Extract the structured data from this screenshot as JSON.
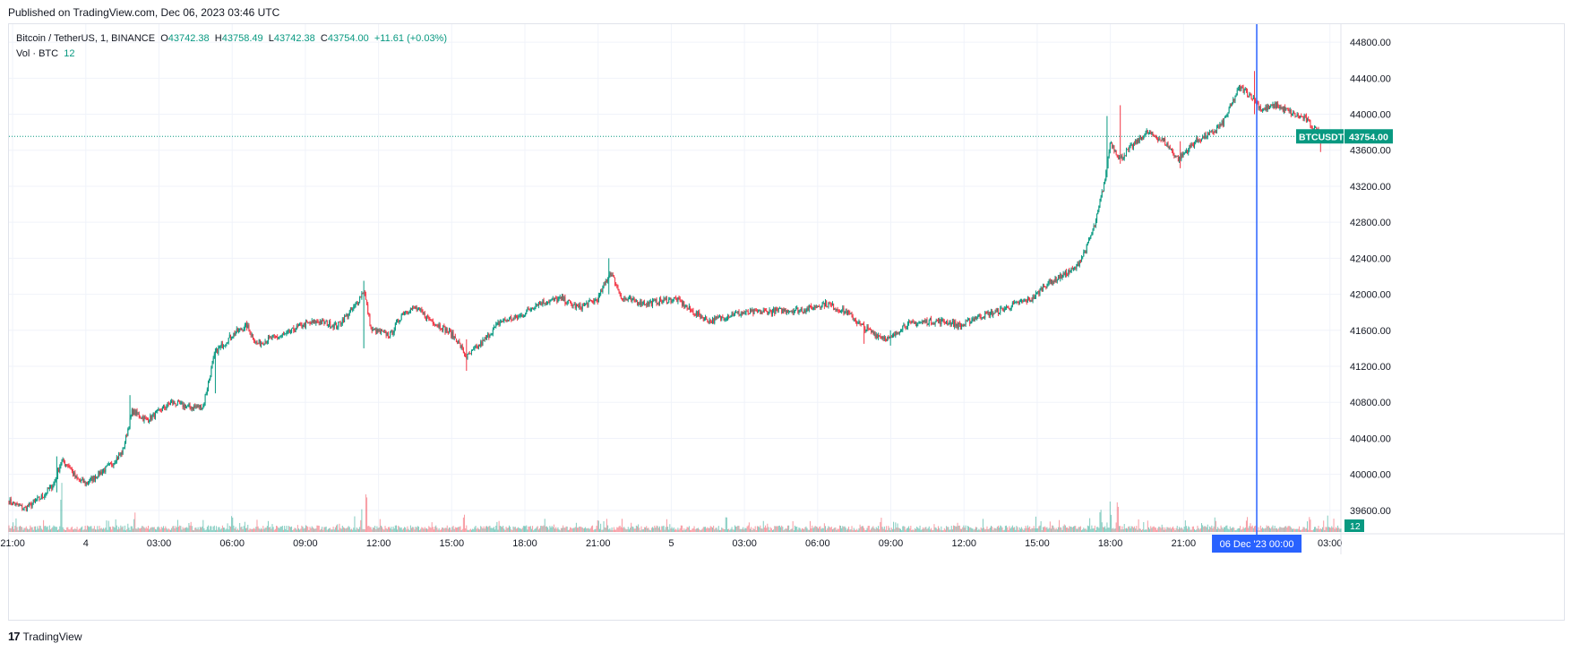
{
  "header": {
    "published": "Published on TradingView.com, Dec 06, 2023 03:46 UTC"
  },
  "legend": {
    "symbol": "Bitcoin / TetherUS, 1, BINANCE",
    "o_label": "O",
    "o": "43742.38",
    "h_label": "H",
    "h": "43758.49",
    "l_label": "L",
    "l": "43742.38",
    "c_label": "C",
    "c": "43754.00",
    "change": "+11.61 (+0.03%)",
    "vol_label": "Vol · BTC",
    "vol_value": "12"
  },
  "footer": {
    "brand": "TradingView",
    "logo": "17"
  },
  "colors": {
    "up": "#089981",
    "down": "#f23645",
    "cursor": "#2962ff",
    "grid": "#f0f3fa"
  },
  "chart_data": {
    "type": "candlestick",
    "symbol": "BTCUSDT",
    "interval": "1",
    "exchange": "BINANCE",
    "ylim": [
      39360,
      45000
    ],
    "y_ticks": [
      39600,
      40000,
      40400,
      40800,
      41200,
      41600,
      42000,
      42400,
      42800,
      43200,
      43600,
      44000,
      44400,
      44800
    ],
    "x_ticks": [
      {
        "label": "21:00",
        "t": 0
      },
      {
        "label": "4",
        "t": 3
      },
      {
        "label": "03:00",
        "t": 6
      },
      {
        "label": "06:00",
        "t": 9
      },
      {
        "label": "09:00",
        "t": 12
      },
      {
        "label": "12:00",
        "t": 15
      },
      {
        "label": "15:00",
        "t": 18
      },
      {
        "label": "18:00",
        "t": 21
      },
      {
        "label": "21:00",
        "t": 24
      },
      {
        "label": "5",
        "t": 27
      },
      {
        "label": "03:00",
        "t": 30
      },
      {
        "label": "06:00",
        "t": 33
      },
      {
        "label": "09:00",
        "t": 36
      },
      {
        "label": "12:00",
        "t": 39
      },
      {
        "label": "15:00",
        "t": 42
      },
      {
        "label": "18:00",
        "t": 45
      },
      {
        "label": "21:00",
        "t": 48
      },
      {
        "label": "03:00",
        "t": 54
      }
    ],
    "t_range": [
      -0.15,
      54.45
    ],
    "price_path": [
      [
        -0.15,
        39700
      ],
      [
        0.5,
        39620
      ],
      [
        1.2,
        39750
      ],
      [
        1.7,
        39900
      ],
      [
        2.0,
        40150
      ],
      [
        2.3,
        40100
      ],
      [
        2.6,
        39950
      ],
      [
        3.0,
        39900
      ],
      [
        3.5,
        40000
      ],
      [
        4.0,
        40100
      ],
      [
        4.5,
        40250
      ],
      [
        4.9,
        40700
      ],
      [
        5.5,
        40600
      ],
      [
        6.0,
        40700
      ],
      [
        6.5,
        40800
      ],
      [
        7.2,
        40750
      ],
      [
        7.8,
        40750
      ],
      [
        8.3,
        41350
      ],
      [
        9.0,
        41550
      ],
      [
        9.6,
        41650
      ],
      [
        10.0,
        41450
      ],
      [
        10.5,
        41500
      ],
      [
        11.2,
        41550
      ],
      [
        11.8,
        41650
      ],
      [
        12.5,
        41700
      ],
      [
        13.3,
        41650
      ],
      [
        14.0,
        41850
      ],
      [
        14.4,
        42050
      ],
      [
        14.7,
        41600
      ],
      [
        15.5,
        41550
      ],
      [
        16.0,
        41800
      ],
      [
        16.5,
        41850
      ],
      [
        17.2,
        41700
      ],
      [
        17.8,
        41600
      ],
      [
        18.2,
        41500
      ],
      [
        18.6,
        41300
      ],
      [
        19.2,
        41450
      ],
      [
        20.0,
        41700
      ],
      [
        20.8,
        41750
      ],
      [
        21.5,
        41900
      ],
      [
        22.5,
        41950
      ],
      [
        23.2,
        41850
      ],
      [
        24.0,
        41950
      ],
      [
        24.5,
        42250
      ],
      [
        25.0,
        41950
      ],
      [
        26.0,
        41900
      ],
      [
        27.2,
        41950
      ],
      [
        27.9,
        41800
      ],
      [
        28.6,
        41700
      ],
      [
        29.5,
        41780
      ],
      [
        30.5,
        41800
      ],
      [
        31.5,
        41820
      ],
      [
        32.5,
        41830
      ],
      [
        33.3,
        41900
      ],
      [
        34.2,
        41800
      ],
      [
        34.8,
        41650
      ],
      [
        35.4,
        41550
      ],
      [
        36.0,
        41500
      ],
      [
        36.5,
        41650
      ],
      [
        37.5,
        41700
      ],
      [
        38.2,
        41700
      ],
      [
        38.9,
        41650
      ],
      [
        39.5,
        41750
      ],
      [
        40.3,
        41800
      ],
      [
        41.2,
        41900
      ],
      [
        41.8,
        41950
      ],
      [
        42.3,
        42100
      ],
      [
        43.0,
        42200
      ],
      [
        43.6,
        42300
      ],
      [
        44.0,
        42500
      ],
      [
        44.4,
        42800
      ],
      [
        44.8,
        43300
      ],
      [
        45.0,
        43700
      ],
      [
        45.4,
        43500
      ],
      [
        45.9,
        43650
      ],
      [
        46.5,
        43800
      ],
      [
        47.2,
        43700
      ],
      [
        47.8,
        43500
      ],
      [
        48.5,
        43700
      ],
      [
        49.2,
        43800
      ],
      [
        49.6,
        43900
      ],
      [
        50.3,
        44300
      ],
      [
        50.8,
        44200
      ],
      [
        51.2,
        44050
      ],
      [
        51.8,
        44100
      ],
      [
        52.5,
        44000
      ],
      [
        53.0,
        43950
      ],
      [
        53.3,
        43850
      ],
      [
        53.8,
        43750
      ],
      [
        54.45,
        43754
      ]
    ],
    "price_spikes": [
      {
        "t": 1.8,
        "high": 40200,
        "low": 39800
      },
      {
        "t": 4.8,
        "high": 40880,
        "low": 40500
      },
      {
        "t": 8.3,
        "high": 41400,
        "low": 40900
      },
      {
        "t": 14.4,
        "high": 42150,
        "low": 41400
      },
      {
        "t": 18.6,
        "high": 41500,
        "low": 41150
      },
      {
        "t": 24.45,
        "high": 42400,
        "low": 42000
      },
      {
        "t": 34.9,
        "high": 41700,
        "low": 41450
      },
      {
        "t": 36.0,
        "high": 41600,
        "low": 41430
      },
      {
        "t": 44.85,
        "high": 43980,
        "low": 43300
      },
      {
        "t": 45.4,
        "high": 44100,
        "low": 43450
      },
      {
        "t": 47.85,
        "high": 43700,
        "low": 43400
      },
      {
        "t": 50.9,
        "high": 44480,
        "low": 44000
      },
      {
        "t": 53.6,
        "high": 43750,
        "low": 43580
      }
    ],
    "volume_peaks": [
      {
        "t": 2.0,
        "v": 140
      },
      {
        "t": 5.0,
        "v": 55
      },
      {
        "t": 9.0,
        "v": 60
      },
      {
        "t": 14.3,
        "v": 55
      },
      {
        "t": 14.5,
        "v": 115
      },
      {
        "t": 18.5,
        "v": 62
      },
      {
        "t": 24.0,
        "v": 45
      },
      {
        "t": 35.6,
        "v": 40
      },
      {
        "t": 44.6,
        "v": 70
      },
      {
        "t": 45.0,
        "v": 90
      },
      {
        "t": 45.3,
        "v": 88
      },
      {
        "t": 49.3,
        "v": 45
      },
      {
        "t": 50.6,
        "v": 48
      }
    ],
    "last_price": {
      "label": "BTCUSDT",
      "value": "43754.00",
      "price": 43754
    },
    "last_volume": "12",
    "crosshair": {
      "label": "06 Dec '23   00:00",
      "t": 51.0
    }
  }
}
